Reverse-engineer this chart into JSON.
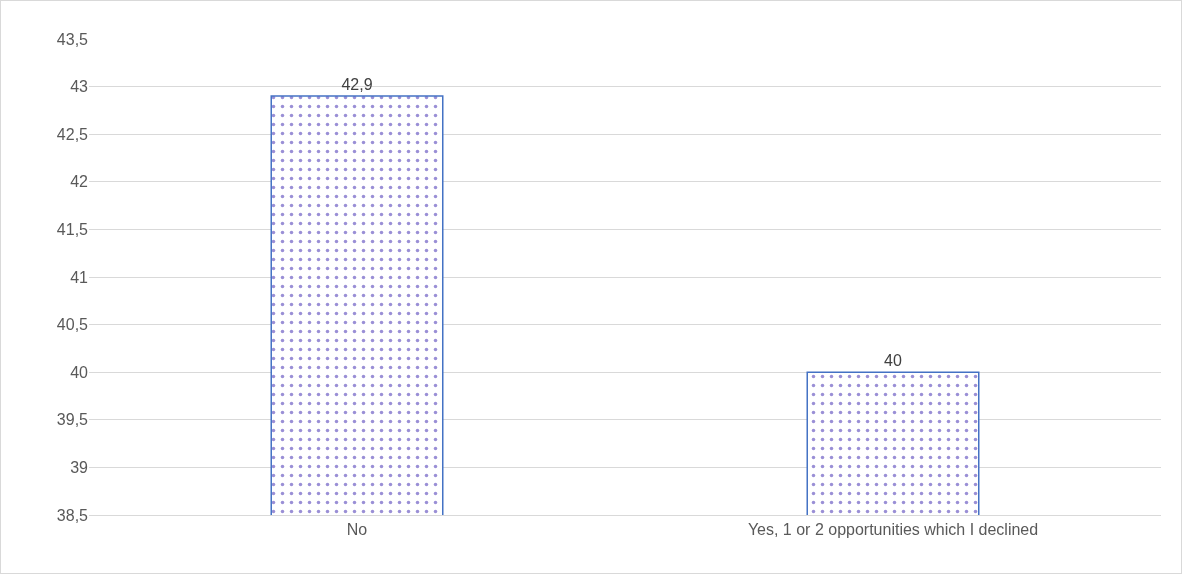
{
  "chart_data": {
    "type": "bar",
    "categories": [
      "No",
      "Yes, 1 or 2 opportunities which I declined"
    ],
    "values": [
      42.9,
      40
    ],
    "value_labels": [
      "42,9",
      "40"
    ],
    "color": "#4472c4",
    "ylim": [
      38.5,
      43.5
    ],
    "yticks": [
      {
        "value": 38.5,
        "label": "38,5"
      },
      {
        "value": 39,
        "label": "39"
      },
      {
        "value": 39.5,
        "label": "39,5"
      },
      {
        "value": 40,
        "label": "40"
      },
      {
        "value": 40.5,
        "label": "40,5"
      },
      {
        "value": 41,
        "label": "41"
      },
      {
        "value": 41.5,
        "label": "41,5"
      },
      {
        "value": 42,
        "label": "42"
      },
      {
        "value": 42.5,
        "label": "42,5"
      },
      {
        "value": 43,
        "label": "43"
      },
      {
        "value": 43.5,
        "label": "43,5"
      }
    ],
    "grid": "y"
  }
}
